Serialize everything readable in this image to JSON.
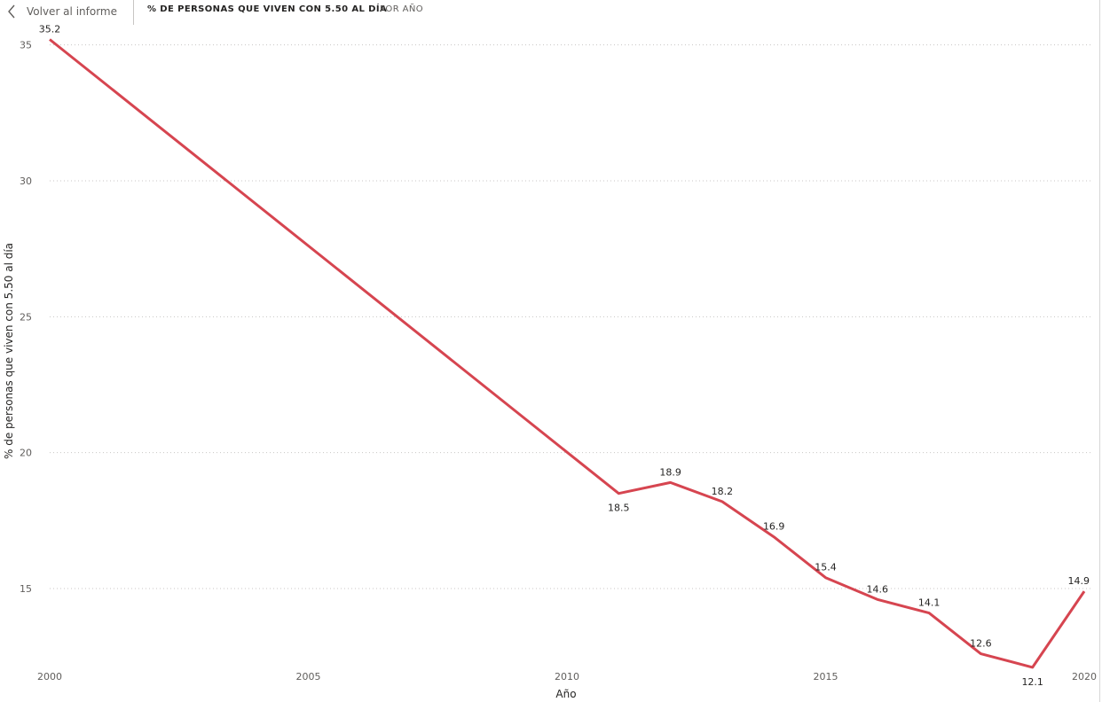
{
  "header": {
    "back_label": "Volver al informe",
    "title": "% DE PERSONAS QUE VIVEN CON 5.50 AL DÍA",
    "subtitle": "POR AÑO"
  },
  "colors": {
    "line": "#D64550",
    "grid": "#C8C6C4",
    "text": "#252423",
    "muted": "#605E5C"
  },
  "chart_data": {
    "type": "line",
    "xlabel": "Año",
    "ylabel": "% de personas que viven con 5.50 al día",
    "xlim": [
      2000,
      2020
    ],
    "ylim": [
      12,
      36
    ],
    "xticks": [
      2000,
      2005,
      2010,
      2015,
      2020
    ],
    "yticks": [
      15,
      20,
      25,
      30,
      35
    ],
    "grid": "horizontal-dotted",
    "series": [
      {
        "x": [
          2000,
          2011,
          2012,
          2013,
          2014,
          2015,
          2016,
          2017,
          2018,
          2019,
          2020
        ],
        "values": [
          35.2,
          18.5,
          18.9,
          18.2,
          16.9,
          15.4,
          14.6,
          14.1,
          12.6,
          12.1,
          14.9
        ],
        "labels": [
          "35.2",
          "18.5",
          "18.9",
          "18.2",
          "16.9",
          "15.4",
          "14.6",
          "14.1",
          "12.6",
          "12.1",
          "14.9"
        ]
      }
    ]
  }
}
